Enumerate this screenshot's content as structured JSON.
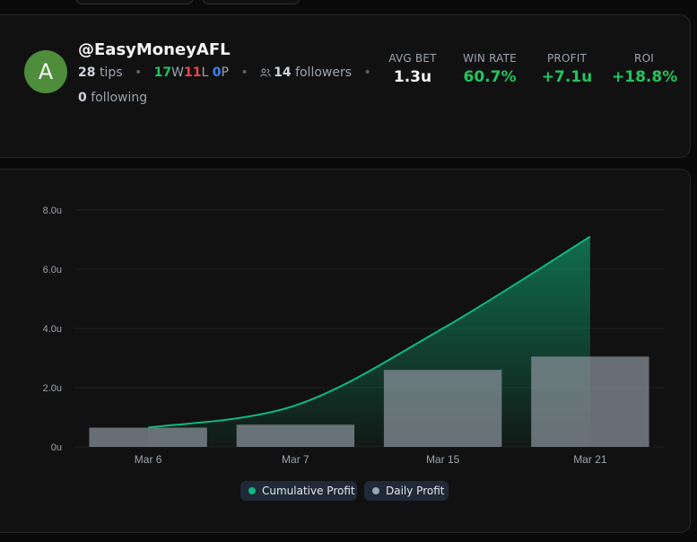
{
  "profile": {
    "avatar_initial": "A",
    "username": "@EasyMoneyAFL",
    "tips_count": "28",
    "tips_label": "tips",
    "record": {
      "wins": "17",
      "wins_letter": "W",
      "losses": "11",
      "losses_letter": "L",
      "pushes": "0",
      "pushes_letter": "P"
    },
    "followers_icon": "users-icon",
    "followers_count": "14",
    "followers_label": "followers",
    "following_count": "0",
    "following_label": "following"
  },
  "stats": [
    {
      "label": "AVG BET",
      "value": "1.3u",
      "color": "#f3f4f6"
    },
    {
      "label": "WIN RATE",
      "value": "60.7%",
      "color": "#22c55e"
    },
    {
      "label": "PROFIT",
      "value": "+7.1u",
      "color": "#22c55e"
    },
    {
      "label": "ROI",
      "value": "+18.8%",
      "color": "#22c55e"
    }
  ],
  "chart_data": {
    "type": "bar",
    "categories": [
      "Mar 6",
      "Mar 7",
      "Mar 15",
      "Mar 21"
    ],
    "series": [
      {
        "name": "Daily Profit",
        "type": "bar",
        "values": [
          0.65,
          0.75,
          2.6,
          3.05
        ],
        "color": "#6b7280"
      },
      {
        "name": "Cumulative Profit",
        "type": "area",
        "values": [
          0.65,
          1.4,
          4.0,
          7.1
        ],
        "color": "#10b981"
      }
    ],
    "ylim": [
      0,
      8
    ],
    "yticks": [
      0,
      2,
      4,
      6,
      8
    ],
    "ytick_labels": [
      "0u",
      "2.0u",
      "4.0u",
      "6.0u",
      "8.0u"
    ],
    "grid": true,
    "legend": "bottom-center",
    "title": "",
    "xlabel": "",
    "ylabel": ""
  },
  "legend": [
    {
      "label": "Cumulative Profit",
      "color": "#10b981"
    },
    {
      "label": "Daily Profit",
      "color": "#9ca3af"
    }
  ]
}
